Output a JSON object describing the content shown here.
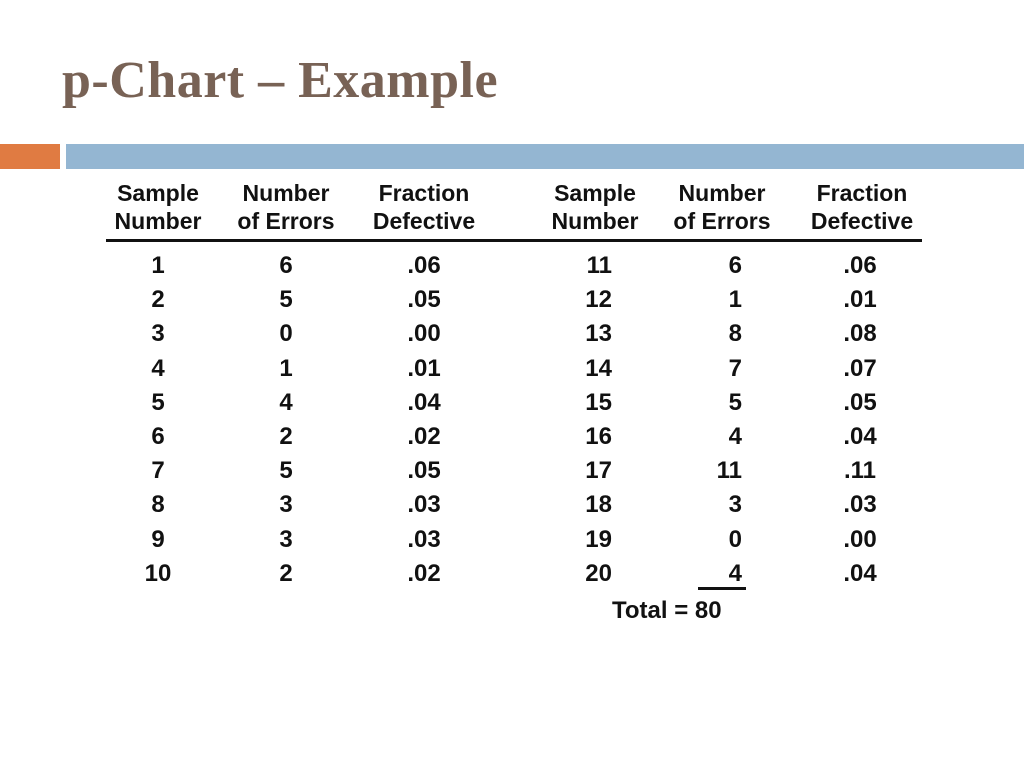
{
  "slide": {
    "title": "p-Chart – Example"
  },
  "table": {
    "headers": [
      [
        "Sample",
        "Number"
      ],
      [
        "Number",
        "of Errors"
      ],
      [
        "Fraction",
        "Defective"
      ],
      [
        "Sample",
        "Number"
      ],
      [
        "Number",
        "of Errors"
      ],
      [
        "Fraction",
        "Defective"
      ]
    ],
    "left_rows": [
      [
        "1",
        "6",
        ".06"
      ],
      [
        "2",
        "5",
        ".05"
      ],
      [
        "3",
        "0",
        ".00"
      ],
      [
        "4",
        "1",
        ".01"
      ],
      [
        "5",
        "4",
        ".04"
      ],
      [
        "6",
        "2",
        ".02"
      ],
      [
        "7",
        "5",
        ".05"
      ],
      [
        "8",
        "3",
        ".03"
      ],
      [
        "9",
        "3",
        ".03"
      ],
      [
        "10",
        "2",
        ".02"
      ]
    ],
    "right_rows": [
      [
        "11",
        "6",
        ".06"
      ],
      [
        "12",
        "1",
        ".01"
      ],
      [
        "13",
        "8",
        ".08"
      ],
      [
        "14",
        "7",
        ".07"
      ],
      [
        "15",
        "5",
        ".05"
      ],
      [
        "16",
        "4",
        ".04"
      ],
      [
        "17",
        "11",
        ".11"
      ],
      [
        "18",
        "3",
        ".03"
      ],
      [
        "19",
        "0",
        ".00"
      ],
      [
        "20",
        "4",
        ".04"
      ]
    ],
    "total": "Total = 80"
  }
}
